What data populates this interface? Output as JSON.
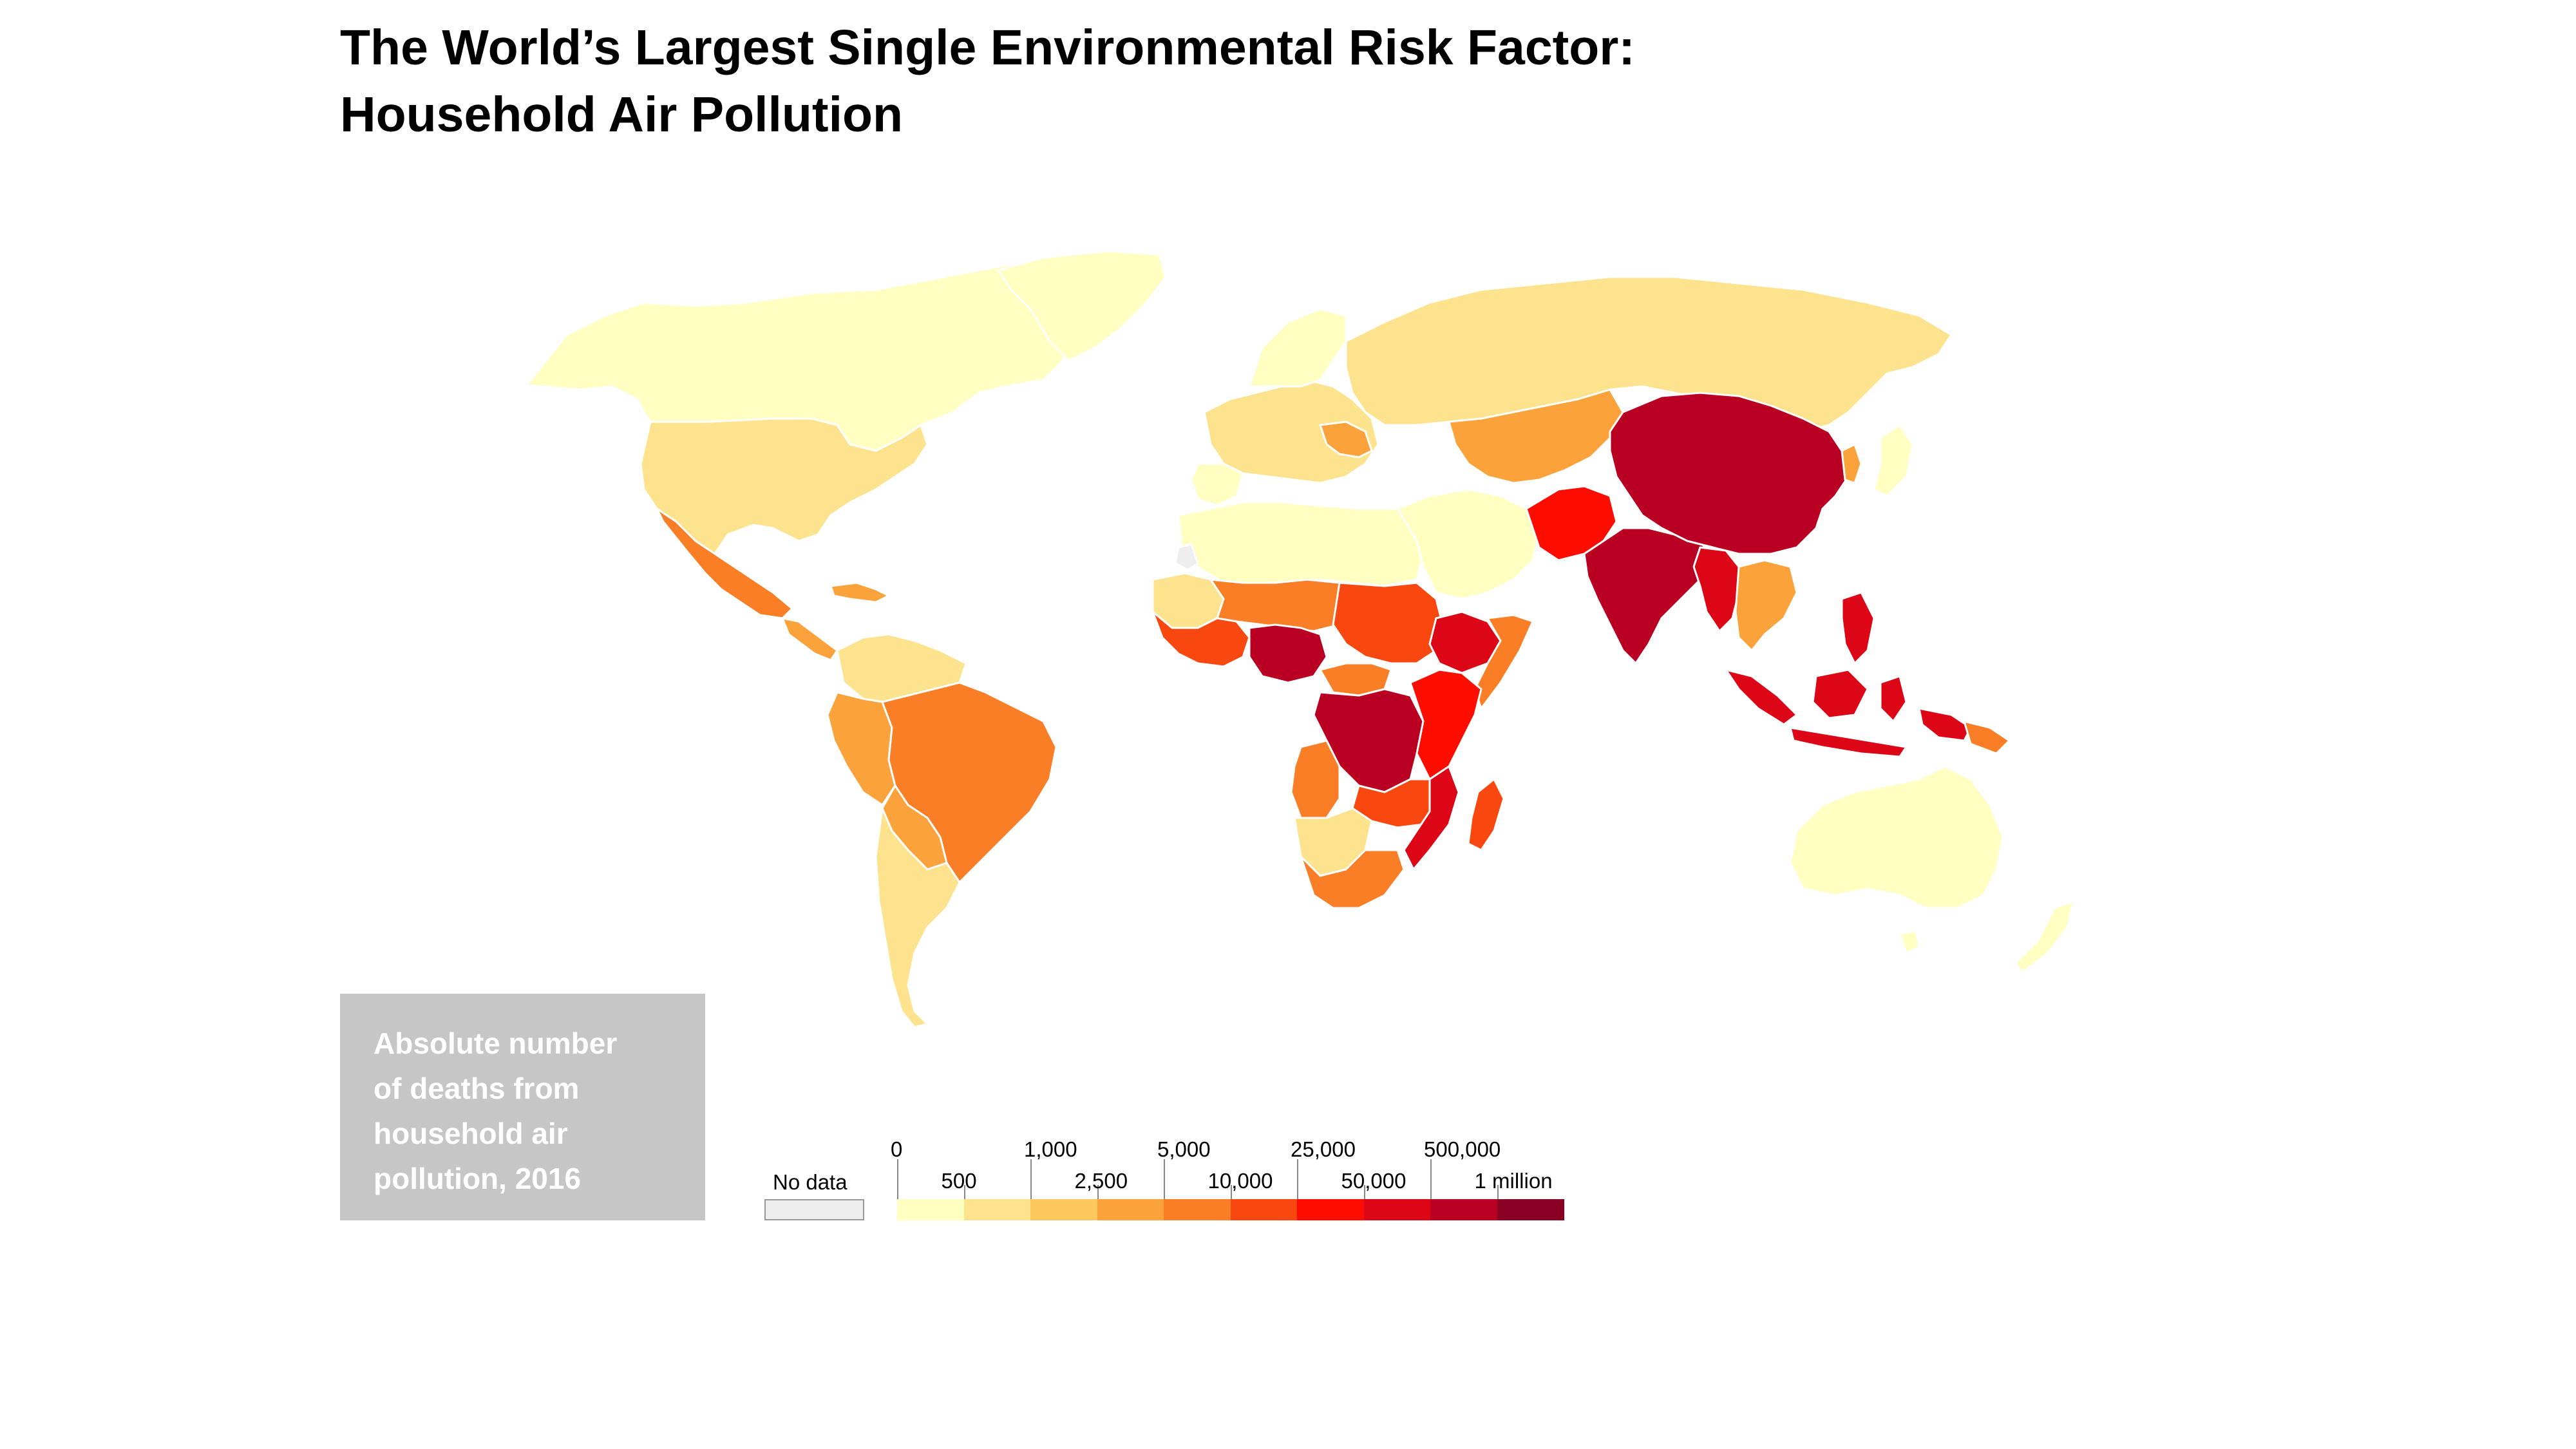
{
  "title": {
    "line1": "The World’s Largest Single Environmental Risk Factor:",
    "line2": "Household Air Pollution"
  },
  "legend": {
    "description": [
      "Absolute number",
      "of deaths from",
      "household air",
      "pollution, 2016"
    ],
    "no_data_label": "No data",
    "no_data_color": "#eeeeee",
    "bins": [
      {
        "upper": "500",
        "color": "#ffffc2"
      },
      {
        "upper": "1,000",
        "color": "#fde38d"
      },
      {
        "upper": "2,500",
        "color": "#fdc95e"
      },
      {
        "upper": "5,000",
        "color": "#fca23a"
      },
      {
        "upper": "10,000",
        "color": "#f97e25"
      },
      {
        "upper": "25,000",
        "color": "#f94710"
      },
      {
        "upper": "50,000",
        "color": "#fd0c00"
      },
      {
        "upper": "500,000",
        "color": "#dc0617"
      },
      {
        "upper": "1 million",
        "color": "#b90022"
      },
      {
        "upper": "",
        "color": "#8a0025"
      }
    ],
    "upper_tick_labels": [
      "0",
      "1,000",
      "5,000",
      "25,000",
      "500,000"
    ],
    "lower_tick_labels": [
      "500",
      "2,500",
      "10,000",
      "50,000",
      "1 million"
    ]
  },
  "regions": [
    {
      "name": "North America (Canada, Greenland, Alaska)",
      "bin": "0-500"
    },
    {
      "name": "United States",
      "bin": "1,000-2,500"
    },
    {
      "name": "Mexico",
      "bin": "5,000-10,000"
    },
    {
      "name": "Central America and Caribbean",
      "bin": "2,500-10,000"
    },
    {
      "name": "Colombia / Venezuela",
      "bin": "500-2,500"
    },
    {
      "name": "Peru / Ecuador",
      "bin": "2,500-5,000"
    },
    {
      "name": "Brazil",
      "bin": "5,000-10,000"
    },
    {
      "name": "Bolivia / Paraguay",
      "bin": "2,500-10,000"
    },
    {
      "name": "Chile / Argentina",
      "bin": "1,000-2,500"
    },
    {
      "name": "Europe",
      "bin": "0-5,000"
    },
    {
      "name": "Russia",
      "bin": "1,000-2,500"
    },
    {
      "name": "Central Asia / Caucasus",
      "bin": "2,500-5,000"
    },
    {
      "name": "North Africa / Middle East",
      "bin": "0-500"
    },
    {
      "name": "Sahel",
      "bin": "1,000-10,000"
    },
    {
      "name": "West Africa",
      "bin": "5,000-50,000"
    },
    {
      "name": "Nigeria",
      "bin": "50,000-500,000"
    },
    {
      "name": "Sudan / Chad",
      "bin": "10,000-25,000"
    },
    {
      "name": "Ethiopia",
      "bin": "50,000-500,000"
    },
    {
      "name": "DR Congo",
      "bin": "50,000-500,000"
    },
    {
      "name": "East Africa",
      "bin": "25,000-50,000"
    },
    {
      "name": "Southern Africa",
      "bin": "500-10,000"
    },
    {
      "name": "Madagascar",
      "bin": "10,000-25,000"
    },
    {
      "name": "Pakistan / Afghanistan",
      "bin": "25,000-500,000"
    },
    {
      "name": "India",
      "bin": "500,000-1 million"
    },
    {
      "name": "China",
      "bin": "500,000-1 million"
    },
    {
      "name": "Myanmar / Bangladesh",
      "bin": "50,000-500,000"
    },
    {
      "name": "Thailand / Cambodia / Vietnam",
      "bin": "5,000-50,000"
    },
    {
      "name": "Indonesia / Philippines",
      "bin": "50,000-500,000"
    },
    {
      "name": "Papua New Guinea",
      "bin": "5,000-10,000"
    },
    {
      "name": "Japan / Korea",
      "bin": "0-5,000"
    },
    {
      "name": "Australia / New Zealand",
      "bin": "0-500"
    }
  ]
}
